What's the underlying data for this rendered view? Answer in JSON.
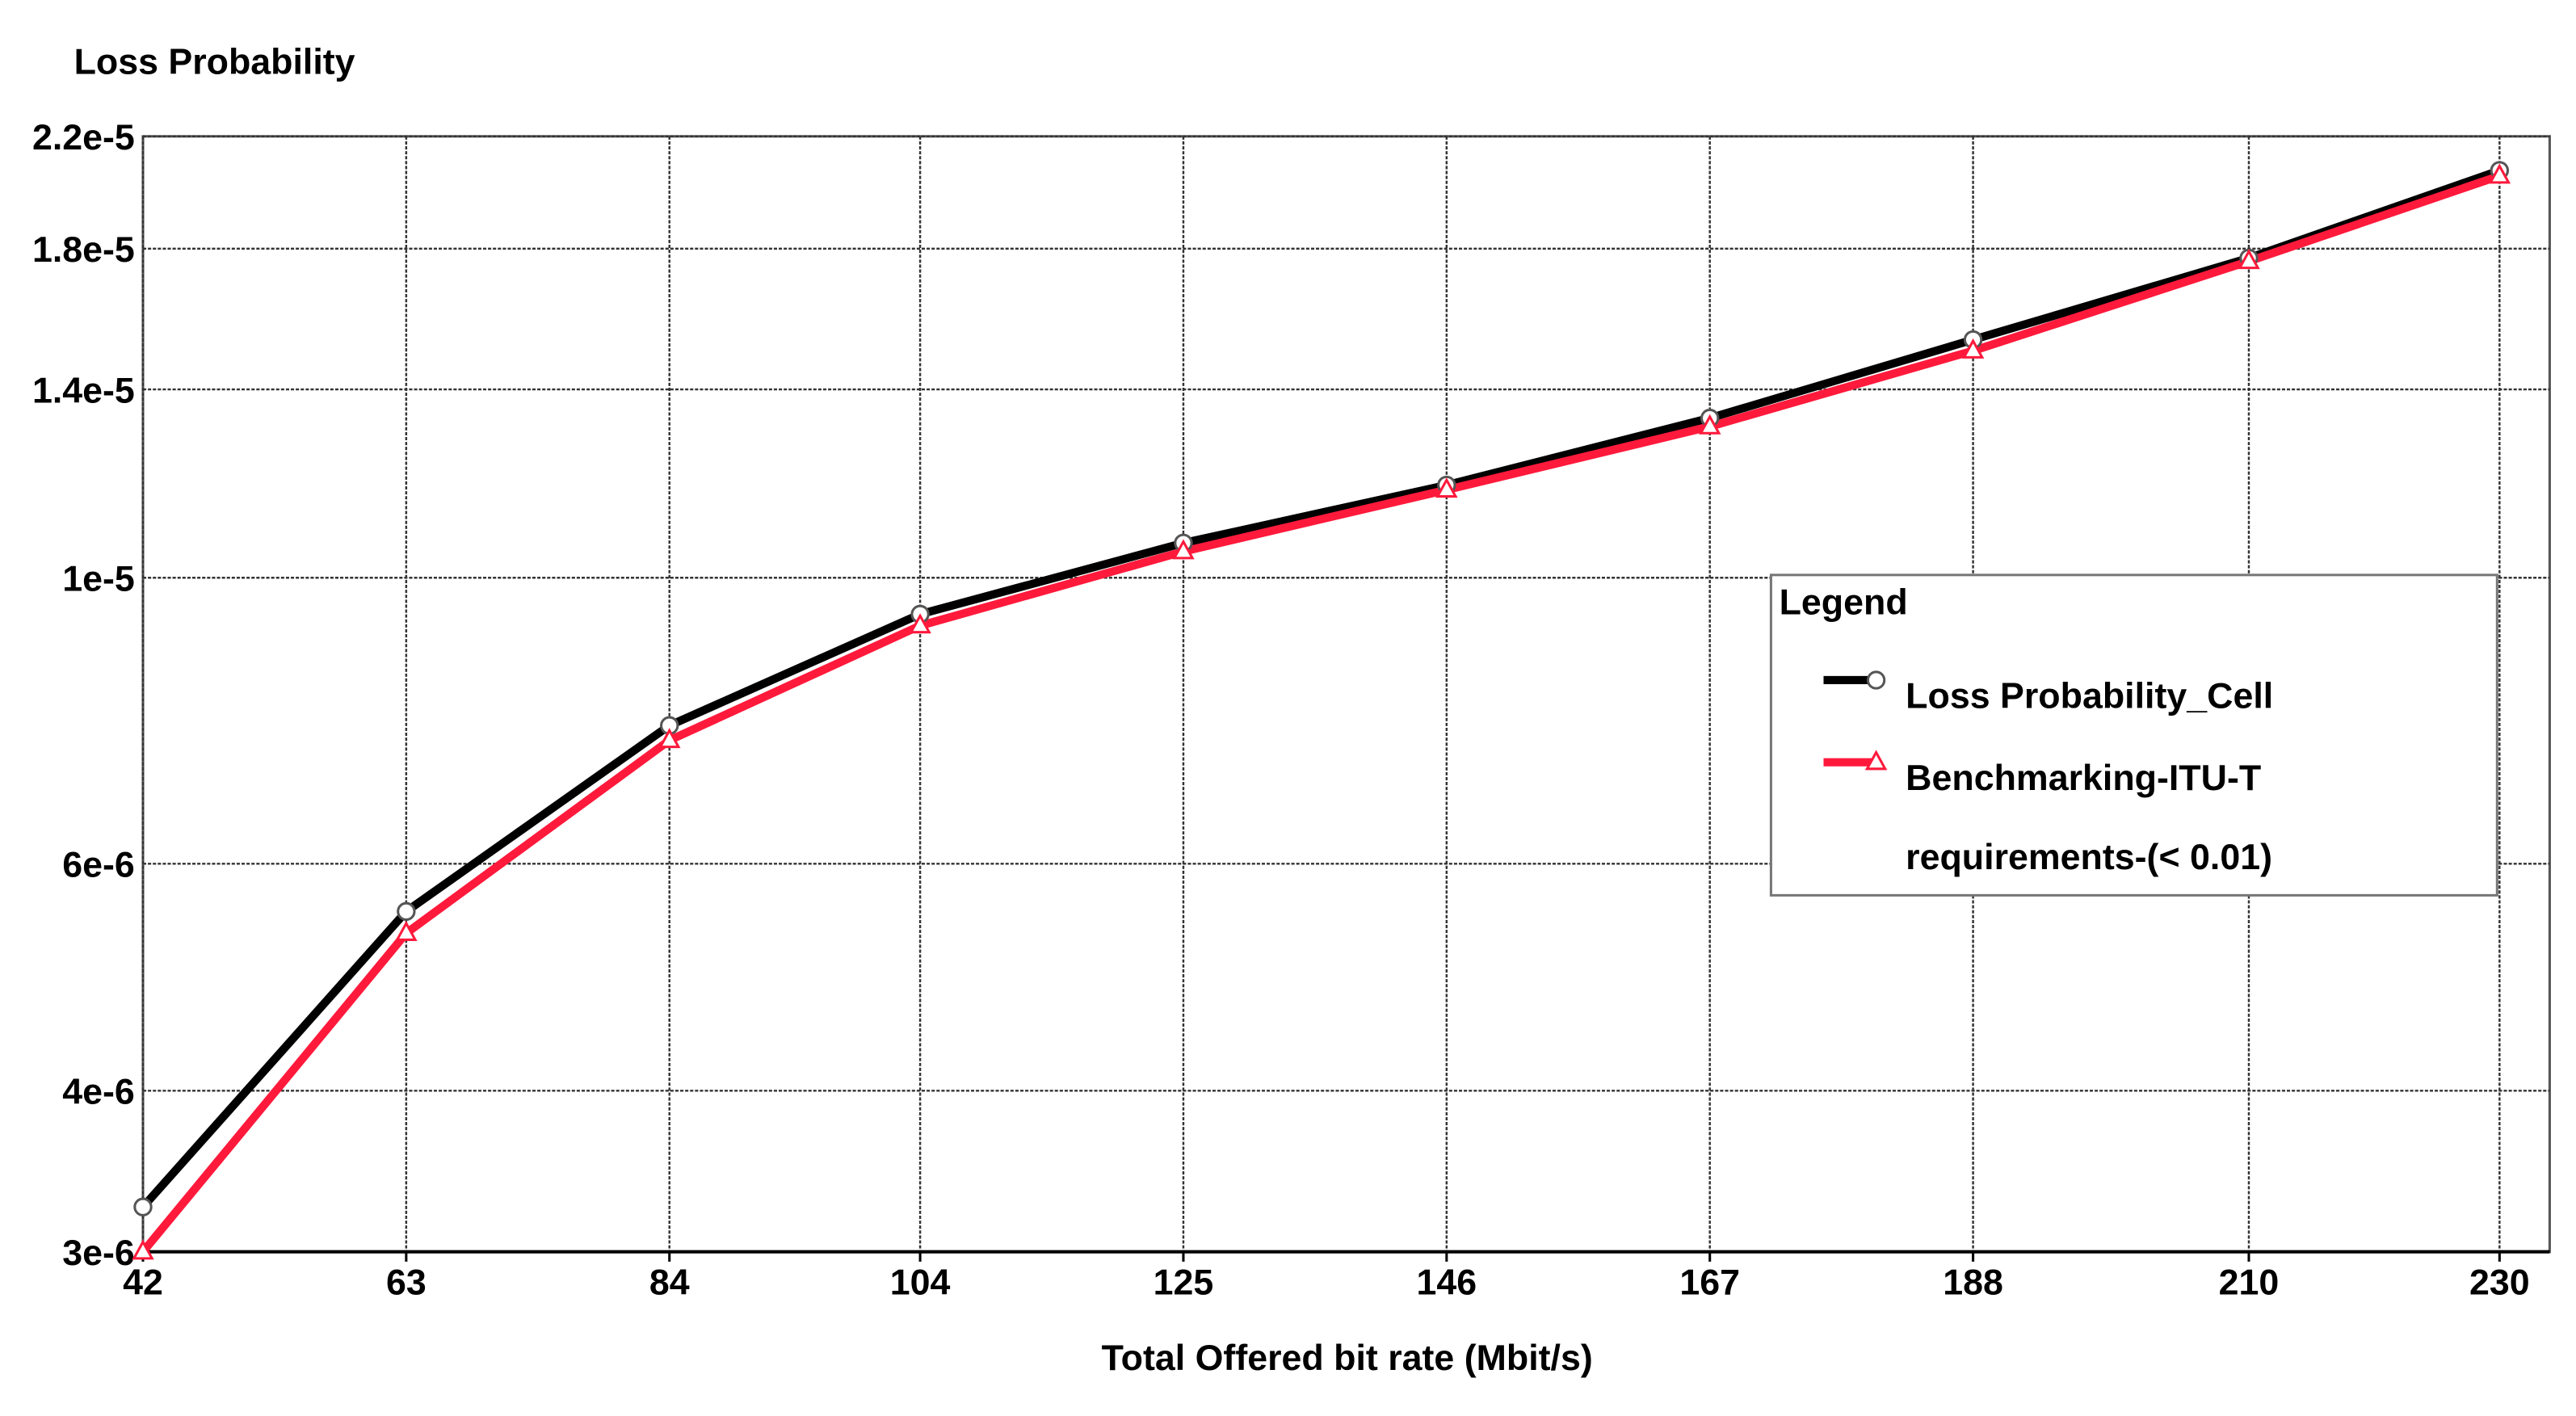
{
  "chart_data": {
    "type": "line",
    "ylabel": "Loss Probability",
    "xlabel": "Total Offered bit rate (Mbit/s)",
    "x": [
      42,
      63,
      84,
      104,
      125,
      146,
      167,
      188,
      210,
      230
    ],
    "xlim": [
      42,
      234
    ],
    "xticks": [
      42,
      63,
      84,
      104,
      125,
      146,
      167,
      188,
      210,
      230
    ],
    "ylim": [
      3e-06,
      2.2e-05
    ],
    "log_y": true,
    "yticks": [
      {
        "value": 3e-06,
        "label": "3e-6"
      },
      {
        "value": 4e-06,
        "label": "4e-6"
      },
      {
        "value": 6e-06,
        "label": "6e-6"
      },
      {
        "value": 1e-05,
        "label": "1e-5"
      },
      {
        "value": 1.4e-05,
        "label": "1.4e-5"
      },
      {
        "value": 1.8e-05,
        "label": "1.8e-5"
      },
      {
        "value": 2.2e-05,
        "label": "2.2e-5"
      }
    ],
    "grid": true,
    "legend_title": "Legend",
    "legend": "right",
    "series": [
      {
        "name": "Loss Probability_Cell",
        "color": "#000000",
        "marker": "circle",
        "values": [
          3.25e-06,
          5.51e-06,
          7.68e-06,
          9.37e-06,
          1.064e-05,
          1.18e-05,
          1.33e-05,
          1.53e-05,
          1.77e-05,
          2.07e-05
        ]
      },
      {
        "name": "Benchmarking-ITU-T requirements-(< 0.01)",
        "color": "#ff1a3c",
        "marker": "triangle",
        "values": [
          3e-06,
          5.3e-06,
          7.48e-06,
          9.18e-06,
          1.048e-05,
          1.17e-05,
          1.31e-05,
          1.5e-05,
          1.76e-05,
          2.05e-05
        ]
      }
    ]
  }
}
